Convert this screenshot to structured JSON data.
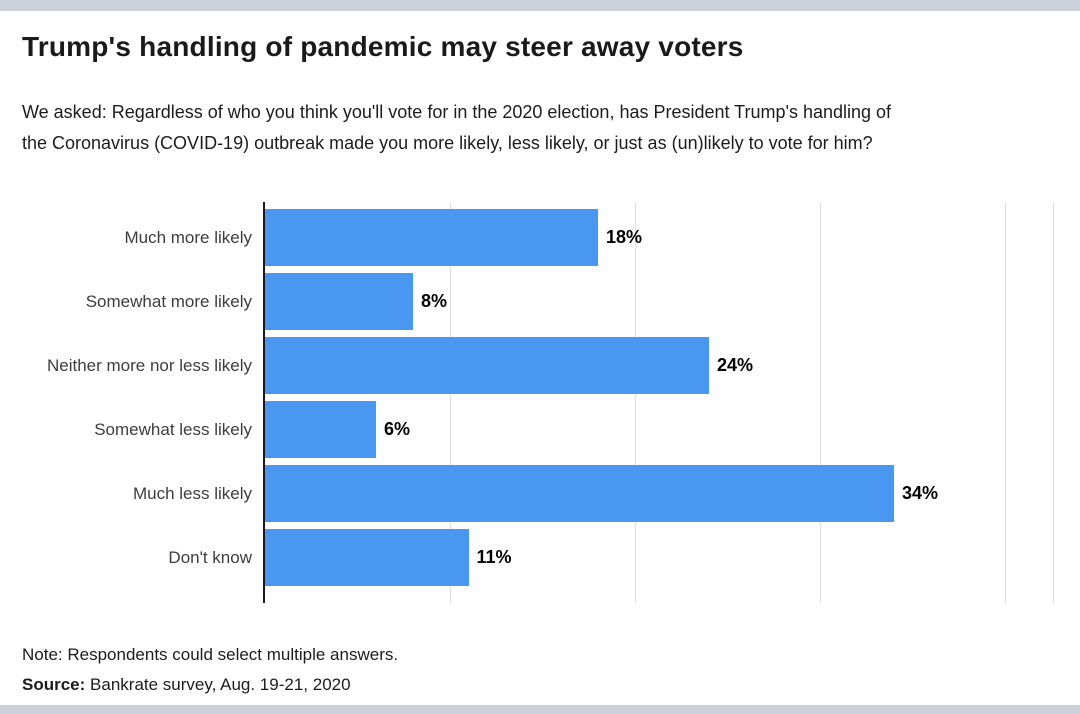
{
  "page": {
    "background_color": "#ffffff",
    "top_bar_color": "#cdd0d8",
    "bottom_bar_color": "#cdd0d8"
  },
  "header": {
    "title": "Trump's handling of pandemic may steer away voters",
    "subtitle": "We asked: Regardless of who you think you'll vote for in the 2020 election, has President Trump's handling of the Coronavirus (COVID-19) outbreak made you more likely, less likely, or just as (un)likely to vote for him?"
  },
  "chart_data": {
    "type": "bar",
    "orientation": "horizontal",
    "title": "Trump's handling of pandemic may steer away voters",
    "categories": [
      "Much more likely",
      "Somewhat more likely",
      "Neither more nor less likely",
      "Somewhat less likely",
      "Much less likely",
      "Don't know"
    ],
    "values": [
      18,
      8,
      24,
      6,
      34,
      11
    ],
    "value_labels": [
      "18%",
      "8%",
      "24%",
      "6%",
      "34%",
      "11%"
    ],
    "bar_color": "#4a97f2",
    "axis_color": "#1a1a1a",
    "gridline_color": "#e0e0e0",
    "xlim": [
      0,
      42.6
    ],
    "gridlines_percent": [
      10,
      20,
      30,
      40
    ],
    "legend": "none",
    "xlabel": "",
    "ylabel": ""
  },
  "footer": {
    "note": "Note: Respondents could select multiple answers.",
    "source_label": "Source:",
    "source_text": "Bankrate survey, Aug. 19-21, 2020"
  }
}
